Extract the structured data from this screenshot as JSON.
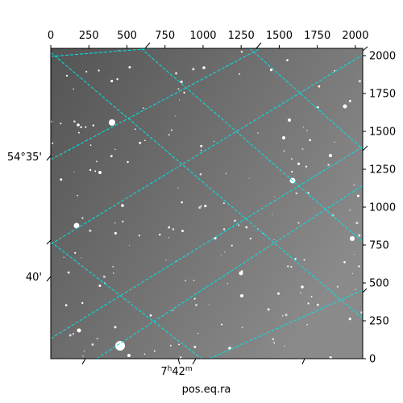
{
  "chart_data": {
    "type": "image",
    "xlabel": "pos.eq.ra",
    "ylabel": "",
    "pixel_axes": {
      "x_ticks": [
        0,
        250,
        500,
        750,
        1000,
        1250,
        1500,
        1750,
        2000
      ],
      "y_ticks": [
        0,
        250,
        500,
        750,
        1000,
        1250,
        1500,
        1750,
        2000
      ],
      "xlim": [
        0,
        2048
      ],
      "ylim": [
        0,
        2048
      ]
    },
    "world_labels": {
      "dec": [
        "54°35'",
        "40'"
      ],
      "ra": "7h42m",
      "ra_hours": "7",
      "ra_minutes": "42",
      "ra_h_unit": "h",
      "ra_m_unit": "m"
    },
    "grid": true,
    "grid_color": "#00e5e5",
    "image_background": "#7a7a7a",
    "image_colormap": "gray"
  }
}
